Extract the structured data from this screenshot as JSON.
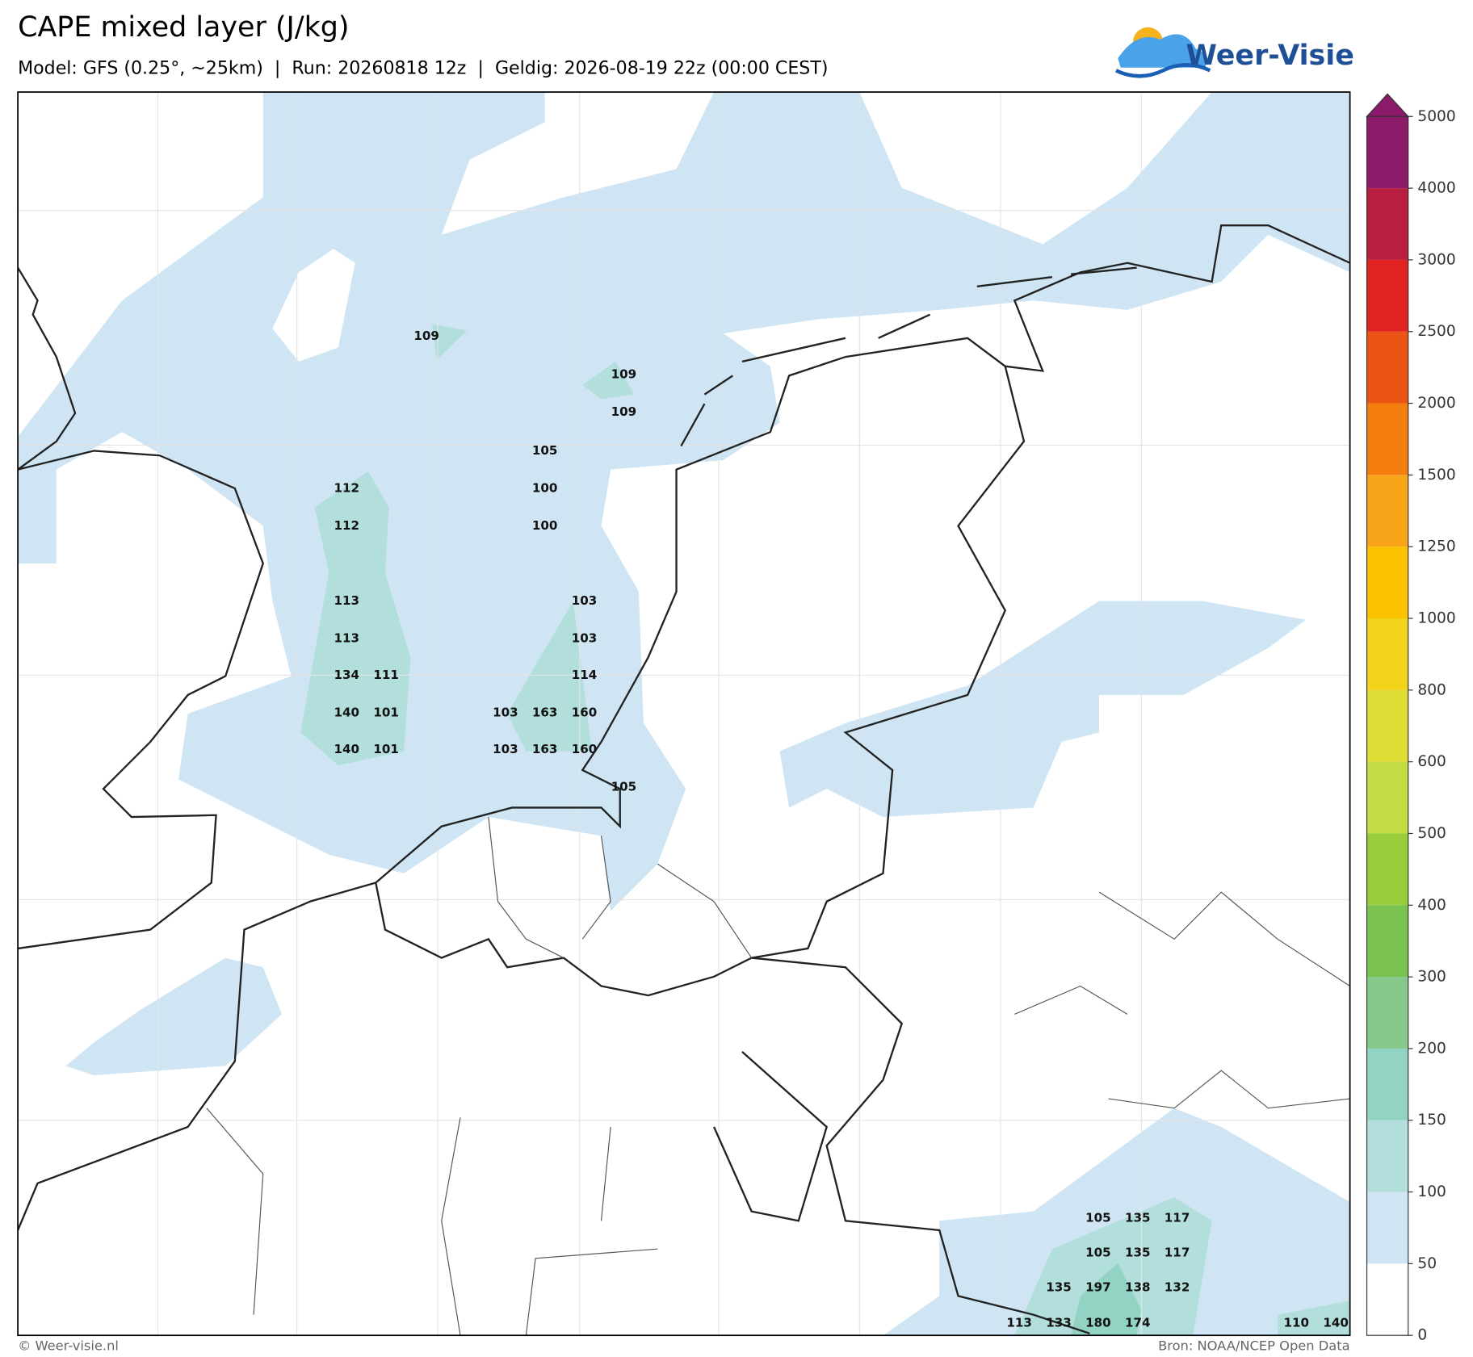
{
  "header": {
    "title": "CAPE mixed layer (J/kg)",
    "subtitle": "Model: GFS (0.25°, ~25km)  |  Run: 20260818 12z  |  Geldig: 2026-08-19 22z (00:00 CEST)",
    "logo": "Weer-Visie"
  },
  "map": {
    "labels": [
      109,
      109,
      109,
      105,
      100,
      100,
      112,
      112,
      113,
      113,
      134,
      111,
      140,
      101,
      140,
      101,
      103,
      103,
      114,
      103,
      163,
      160,
      103,
      163,
      160,
      105,
      105,
      135,
      117,
      105,
      135,
      117,
      135,
      197,
      138,
      132,
      113,
      133,
      180,
      174,
      110,
      140
    ]
  },
  "colorbar": {
    "levels": [
      0,
      50,
      100,
      150,
      200,
      300,
      400,
      500,
      600,
      800,
      1000,
      1250,
      1500,
      2000,
      2500,
      3000,
      4000,
      5000
    ],
    "colors": [
      "#ffffff",
      "#cfe5f4",
      "#b2dfdb",
      "#93d3c4",
      "#86c98b",
      "#7ac251",
      "#9acd3c",
      "#c5dc45",
      "#dfdd35",
      "#f3d21a",
      "#fbc200",
      "#f9a51a",
      "#f57f0e",
      "#ec5413",
      "#e02320",
      "#b81f3e",
      "#8b1a6b"
    ]
  },
  "footer": {
    "credit": "© Weer-visie.nl",
    "source": "Bron: NOAA/NCEP Open Data"
  }
}
